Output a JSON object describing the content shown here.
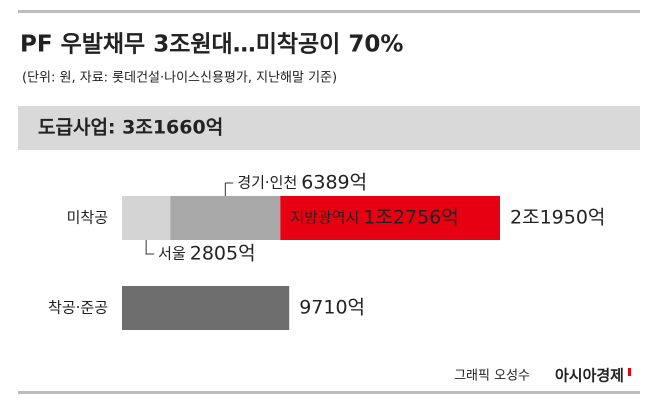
{
  "chart_data": {
    "type": "bar",
    "title": "PF 우발채무 3조원대…미착공이 70%",
    "subtitle": "(단위: 원, 자료: 롯데건설·나이스신용평가, 지난해말 기준)",
    "header": "도급사업: 3조1660억",
    "categories": [
      "미착공",
      "착공·준공"
    ],
    "series": [
      {
        "name": "서울",
        "color": "#d4d4d4",
        "values": [
          2805,
          null
        ],
        "value_labels": [
          "2805억",
          null
        ]
      },
      {
        "name": "경기·인천",
        "color": "#a8a8a8",
        "values": [
          6389,
          null
        ],
        "value_labels": [
          "6389억",
          null
        ]
      },
      {
        "name": "지방광역시",
        "color": "#e60012",
        "values": [
          12756,
          null
        ],
        "value_labels": [
          "1조2756억",
          null
        ]
      },
      {
        "color": "#6e6e6e",
        "values": [
          null,
          9710
        ],
        "value_labels": [
          null,
          "9710억"
        ]
      }
    ],
    "total": {
      "value": 21950,
      "label": "2조1950억"
    },
    "credit": "그래픽 오성수",
    "source_brand": "아시아경제"
  }
}
